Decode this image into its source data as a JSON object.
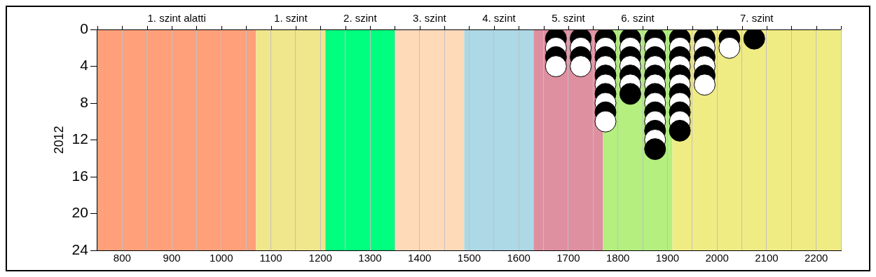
{
  "chart_data": {
    "type": "scatter",
    "ylabel": "2012",
    "xlim": [
      750,
      2250
    ],
    "xticks": [
      {
        "value": 750,
        "label": null
      },
      800,
      {
        "value": 850,
        "label": null
      },
      900,
      {
        "value": 950,
        "label": null
      },
      1000,
      {
        "value": 1050,
        "label": null
      },
      1100,
      {
        "value": 1150,
        "label": null
      },
      1200,
      {
        "value": 1250,
        "label": null
      },
      1300,
      {
        "value": 1350,
        "label": null
      },
      1400,
      {
        "value": 1450,
        "label": null
      },
      1500,
      {
        "value": 1550,
        "label": null
      },
      1600,
      {
        "value": 1650,
        "label": null
      },
      1700,
      {
        "value": 1750,
        "label": null
      },
      1800,
      {
        "value": 1850,
        "label": null
      },
      1900,
      {
        "value": 1950,
        "label": null
      },
      2000,
      {
        "value": 2050,
        "label": null
      },
      2100,
      {
        "value": 2150,
        "label": null
      },
      2200,
      {
        "value": 2250,
        "label": null
      }
    ],
    "ylim": [
      24,
      0
    ],
    "yticks": [
      0,
      4,
      8,
      12,
      16,
      20,
      24
    ],
    "grid": "x",
    "marker": "circle",
    "legend": false,
    "bands": [
      {
        "axis": "x",
        "from": 750,
        "to": 1070,
        "label": "1. szint alatti",
        "color": "#ffa07a"
      },
      {
        "axis": "x",
        "from": 1070,
        "to": 1210,
        "label": "1. szint",
        "color": "#f0e68c"
      },
      {
        "axis": "x",
        "from": 1210,
        "to": 1350,
        "label": "2. szint",
        "color": "#00ff7f"
      },
      {
        "axis": "x",
        "from": 1350,
        "to": 1490,
        "label": "3. szint",
        "color": "#ffdab9"
      },
      {
        "axis": "x",
        "from": 1490,
        "to": 1630,
        "label": "4. szint",
        "color": "#add8e6"
      },
      {
        "axis": "x",
        "from": 1630,
        "to": 1770,
        "label": "5. szint",
        "color": "#de8fa0"
      },
      {
        "axis": "x",
        "from": 1770,
        "to": 1910,
        "label": "6. szint",
        "color": "#b4ef80"
      },
      {
        "axis": "x",
        "from": 1910,
        "to": 2250,
        "label": "7. szint",
        "color": "#f0ec84"
      }
    ],
    "series": [
      {
        "x": [
          1675,
          1675,
          1675,
          1675,
          1725,
          1725,
          1725,
          1725,
          1775,
          1775,
          1775,
          1775,
          1775,
          1775,
          1775,
          1775,
          1775,
          1775,
          1825,
          1825,
          1825,
          1825,
          1825,
          1825,
          1825,
          1875,
          1875,
          1875,
          1875,
          1875,
          1875,
          1875,
          1875,
          1875,
          1875,
          1875,
          1875,
          1875,
          1925,
          1925,
          1925,
          1925,
          1925,
          1925,
          1925,
          1925,
          1925,
          1925,
          1925,
          1975,
          1975,
          1975,
          1975,
          1975,
          1975,
          2025,
          2025,
          2075
        ],
        "values": [
          1,
          2,
          3,
          4,
          1,
          2,
          3,
          4,
          1,
          2,
          3,
          4,
          5,
          6,
          7,
          8,
          9,
          10,
          1,
          2,
          3,
          4,
          5,
          6,
          7,
          1,
          2,
          3,
          4,
          5,
          6,
          7,
          8,
          9,
          10,
          11,
          12,
          13,
          1,
          2,
          3,
          4,
          5,
          6,
          7,
          8,
          9,
          10,
          11,
          1,
          2,
          3,
          4,
          5,
          6,
          1,
          2,
          1
        ],
        "colors": [
          "#000000",
          "#ffffff",
          "#000000",
          "#ffffff",
          "#000000",
          "#ffffff",
          "#000000",
          "#ffffff",
          "#000000",
          "#ffffff",
          "#000000",
          "#ffffff",
          "#000000",
          "#ffffff",
          "#000000",
          "#ffffff",
          "#000000",
          "#ffffff",
          "#000000",
          "#ffffff",
          "#000000",
          "#ffffff",
          "#000000",
          "#ffffff",
          "#000000",
          "#000000",
          "#ffffff",
          "#000000",
          "#ffffff",
          "#000000",
          "#ffffff",
          "#000000",
          "#ffffff",
          "#000000",
          "#ffffff",
          "#000000",
          "#ffffff",
          "#000000",
          "#000000",
          "#ffffff",
          "#000000",
          "#ffffff",
          "#000000",
          "#ffffff",
          "#000000",
          "#ffffff",
          "#000000",
          "#ffffff",
          "#000000",
          "#000000",
          "#ffffff",
          "#000000",
          "#ffffff",
          "#000000",
          "#ffffff",
          "#000000",
          "#ffffff",
          "#000000"
        ]
      }
    ]
  }
}
